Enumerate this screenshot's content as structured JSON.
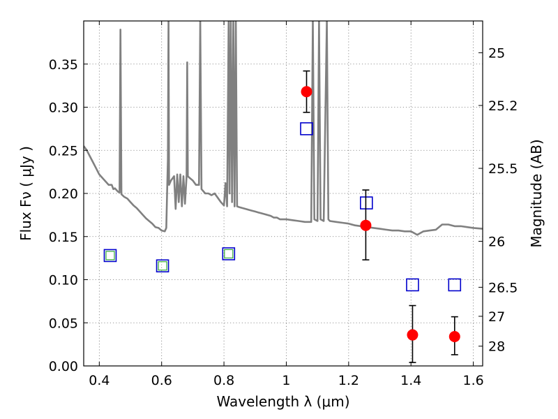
{
  "chart_data": {
    "type": "scatter",
    "xlabel": "Wavelength  λ (μm)",
    "ylabel": "Flux  Fν  ( μJy )",
    "right_ylabel": "Magnitude (AB)",
    "xlim": [
      0.35,
      1.63
    ],
    "ylim": [
      0.0,
      0.4
    ],
    "x_ticks": [
      0.4,
      0.6,
      0.8,
      1.0,
      1.2,
      1.4,
      1.6
    ],
    "x_tick_labels": [
      "0.4",
      "0.6",
      "0.8",
      "1",
      "1.2",
      "1.4",
      "1.6"
    ],
    "y_ticks": [
      0.0,
      0.05,
      0.1,
      0.15,
      0.2,
      0.25,
      0.3,
      0.35
    ],
    "y_tick_labels": [
      "0.00",
      "0.05",
      "0.10",
      "0.15",
      "0.20",
      "0.25",
      "0.30",
      "0.35"
    ],
    "right_ticks": [
      {
        "label": "25",
        "mag": 25.0
      },
      {
        "label": "25.2",
        "mag": 25.2
      },
      {
        "label": "25.5",
        "mag": 25.5
      },
      {
        "label": "26",
        "mag": 26.0
      },
      {
        "label": "26.5",
        "mag": 26.5
      },
      {
        "label": "27",
        "mag": 27.0
      },
      {
        "label": "28",
        "mag": 28.0
      }
    ],
    "grid": true,
    "colors": {
      "model": "#808080",
      "observed": "#ff0000",
      "model_photometry": "#0000cc",
      "inner_square": "#33aa33",
      "errorbar": "#000000"
    },
    "series": [
      {
        "kind": "line",
        "values_xy": [
          [
            0.35,
            0.255
          ],
          [
            0.36,
            0.25
          ],
          [
            0.37,
            0.243
          ],
          [
            0.38,
            0.236
          ],
          [
            0.39,
            0.229
          ],
          [
            0.4,
            0.222
          ],
          [
            0.41,
            0.218
          ],
          [
            0.42,
            0.214
          ],
          [
            0.43,
            0.21
          ],
          [
            0.44,
            0.21
          ],
          [
            0.445,
            0.205
          ],
          [
            0.45,
            0.206
          ],
          [
            0.46,
            0.202
          ],
          [
            0.465,
            0.201
          ],
          [
            0.468,
            0.39
          ],
          [
            0.471,
            0.199
          ],
          [
            0.48,
            0.196
          ],
          [
            0.49,
            0.194
          ],
          [
            0.5,
            0.19
          ],
          [
            0.51,
            0.186
          ],
          [
            0.52,
            0.183
          ],
          [
            0.53,
            0.179
          ],
          [
            0.54,
            0.175
          ],
          [
            0.55,
            0.171
          ],
          [
            0.56,
            0.168
          ],
          [
            0.57,
            0.165
          ],
          [
            0.58,
            0.161
          ],
          [
            0.59,
            0.16
          ],
          [
            0.6,
            0.157
          ],
          [
            0.61,
            0.156
          ],
          [
            0.615,
            0.16
          ],
          [
            0.62,
            0.24
          ],
          [
            0.622,
            0.4
          ],
          [
            0.624,
            0.21
          ],
          [
            0.63,
            0.215
          ],
          [
            0.64,
            0.22
          ],
          [
            0.645,
            0.182
          ],
          [
            0.65,
            0.222
          ],
          [
            0.655,
            0.19
          ],
          [
            0.66,
            0.222
          ],
          [
            0.665,
            0.185
          ],
          [
            0.67,
            0.22
          ],
          [
            0.675,
            0.188
          ],
          [
            0.68,
            0.22
          ],
          [
            0.682,
            0.352
          ],
          [
            0.684,
            0.22
          ],
          [
            0.69,
            0.218
          ],
          [
            0.7,
            0.215
          ],
          [
            0.71,
            0.21
          ],
          [
            0.72,
            0.21
          ],
          [
            0.724,
            0.4
          ],
          [
            0.728,
            0.205
          ],
          [
            0.74,
            0.2
          ],
          [
            0.75,
            0.2
          ],
          [
            0.76,
            0.198
          ],
          [
            0.77,
            0.2
          ],
          [
            0.78,
            0.195
          ],
          [
            0.79,
            0.19
          ],
          [
            0.8,
            0.186
          ],
          [
            0.805,
            0.212
          ],
          [
            0.81,
            0.185
          ],
          [
            0.815,
            0.4
          ],
          [
            0.818,
            0.2
          ],
          [
            0.822,
            0.4
          ],
          [
            0.826,
            0.19
          ],
          [
            0.83,
            0.4
          ],
          [
            0.834,
            0.185
          ],
          [
            0.838,
            0.4
          ],
          [
            0.842,
            0.185
          ],
          [
            0.85,
            0.184
          ],
          [
            0.86,
            0.183
          ],
          [
            0.87,
            0.182
          ],
          [
            0.88,
            0.181
          ],
          [
            0.89,
            0.18
          ],
          [
            0.9,
            0.179
          ],
          [
            0.91,
            0.178
          ],
          [
            0.92,
            0.177
          ],
          [
            0.93,
            0.176
          ],
          [
            0.94,
            0.175
          ],
          [
            0.95,
            0.174
          ],
          [
            0.96,
            0.172
          ],
          [
            0.97,
            0.172
          ],
          [
            0.98,
            0.17
          ],
          [
            0.99,
            0.17
          ],
          [
            1.0,
            0.17
          ],
          [
            1.02,
            0.169
          ],
          [
            1.04,
            0.168
          ],
          [
            1.06,
            0.167
          ],
          [
            1.07,
            0.167
          ],
          [
            1.08,
            0.167
          ],
          [
            1.085,
            0.4
          ],
          [
            1.09,
            0.17
          ],
          [
            1.1,
            0.168
          ],
          [
            1.105,
            0.4
          ],
          [
            1.11,
            0.17
          ],
          [
            1.12,
            0.168
          ],
          [
            1.13,
            0.4
          ],
          [
            1.135,
            0.17
          ],
          [
            1.14,
            0.168
          ],
          [
            1.16,
            0.167
          ],
          [
            1.18,
            0.166
          ],
          [
            1.2,
            0.165
          ],
          [
            1.22,
            0.163
          ],
          [
            1.24,
            0.162
          ],
          [
            1.26,
            0.161
          ],
          [
            1.28,
            0.16
          ],
          [
            1.3,
            0.159
          ],
          [
            1.32,
            0.158
          ],
          [
            1.34,
            0.157
          ],
          [
            1.36,
            0.157
          ],
          [
            1.38,
            0.156
          ],
          [
            1.4,
            0.156
          ],
          [
            1.42,
            0.152
          ],
          [
            1.44,
            0.156
          ],
          [
            1.46,
            0.157
          ],
          [
            1.48,
            0.158
          ],
          [
            1.5,
            0.164
          ],
          [
            1.52,
            0.164
          ],
          [
            1.54,
            0.162
          ],
          [
            1.56,
            0.162
          ],
          [
            1.58,
            0.161
          ],
          [
            1.6,
            0.16
          ],
          [
            1.63,
            0.159
          ]
        ]
      },
      {
        "kind": "points-with-errors",
        "x": [
          1.065,
          1.255,
          1.405,
          1.54
        ],
        "y": [
          0.318,
          0.163,
          0.036,
          0.034
        ],
        "yerr_low": [
          0.024,
          0.04,
          0.032,
          0.021
        ],
        "yerr_high": [
          0.024,
          0.041,
          0.034,
          0.023
        ]
      },
      {
        "kind": "open-squares",
        "x": [
          0.435,
          0.603,
          0.815,
          1.065,
          1.257,
          1.405,
          1.54
        ],
        "y": [
          0.128,
          0.116,
          0.13,
          0.275,
          0.189,
          0.094,
          0.094
        ],
        "inner": [
          true,
          true,
          true,
          false,
          false,
          false,
          false
        ]
      }
    ]
  }
}
